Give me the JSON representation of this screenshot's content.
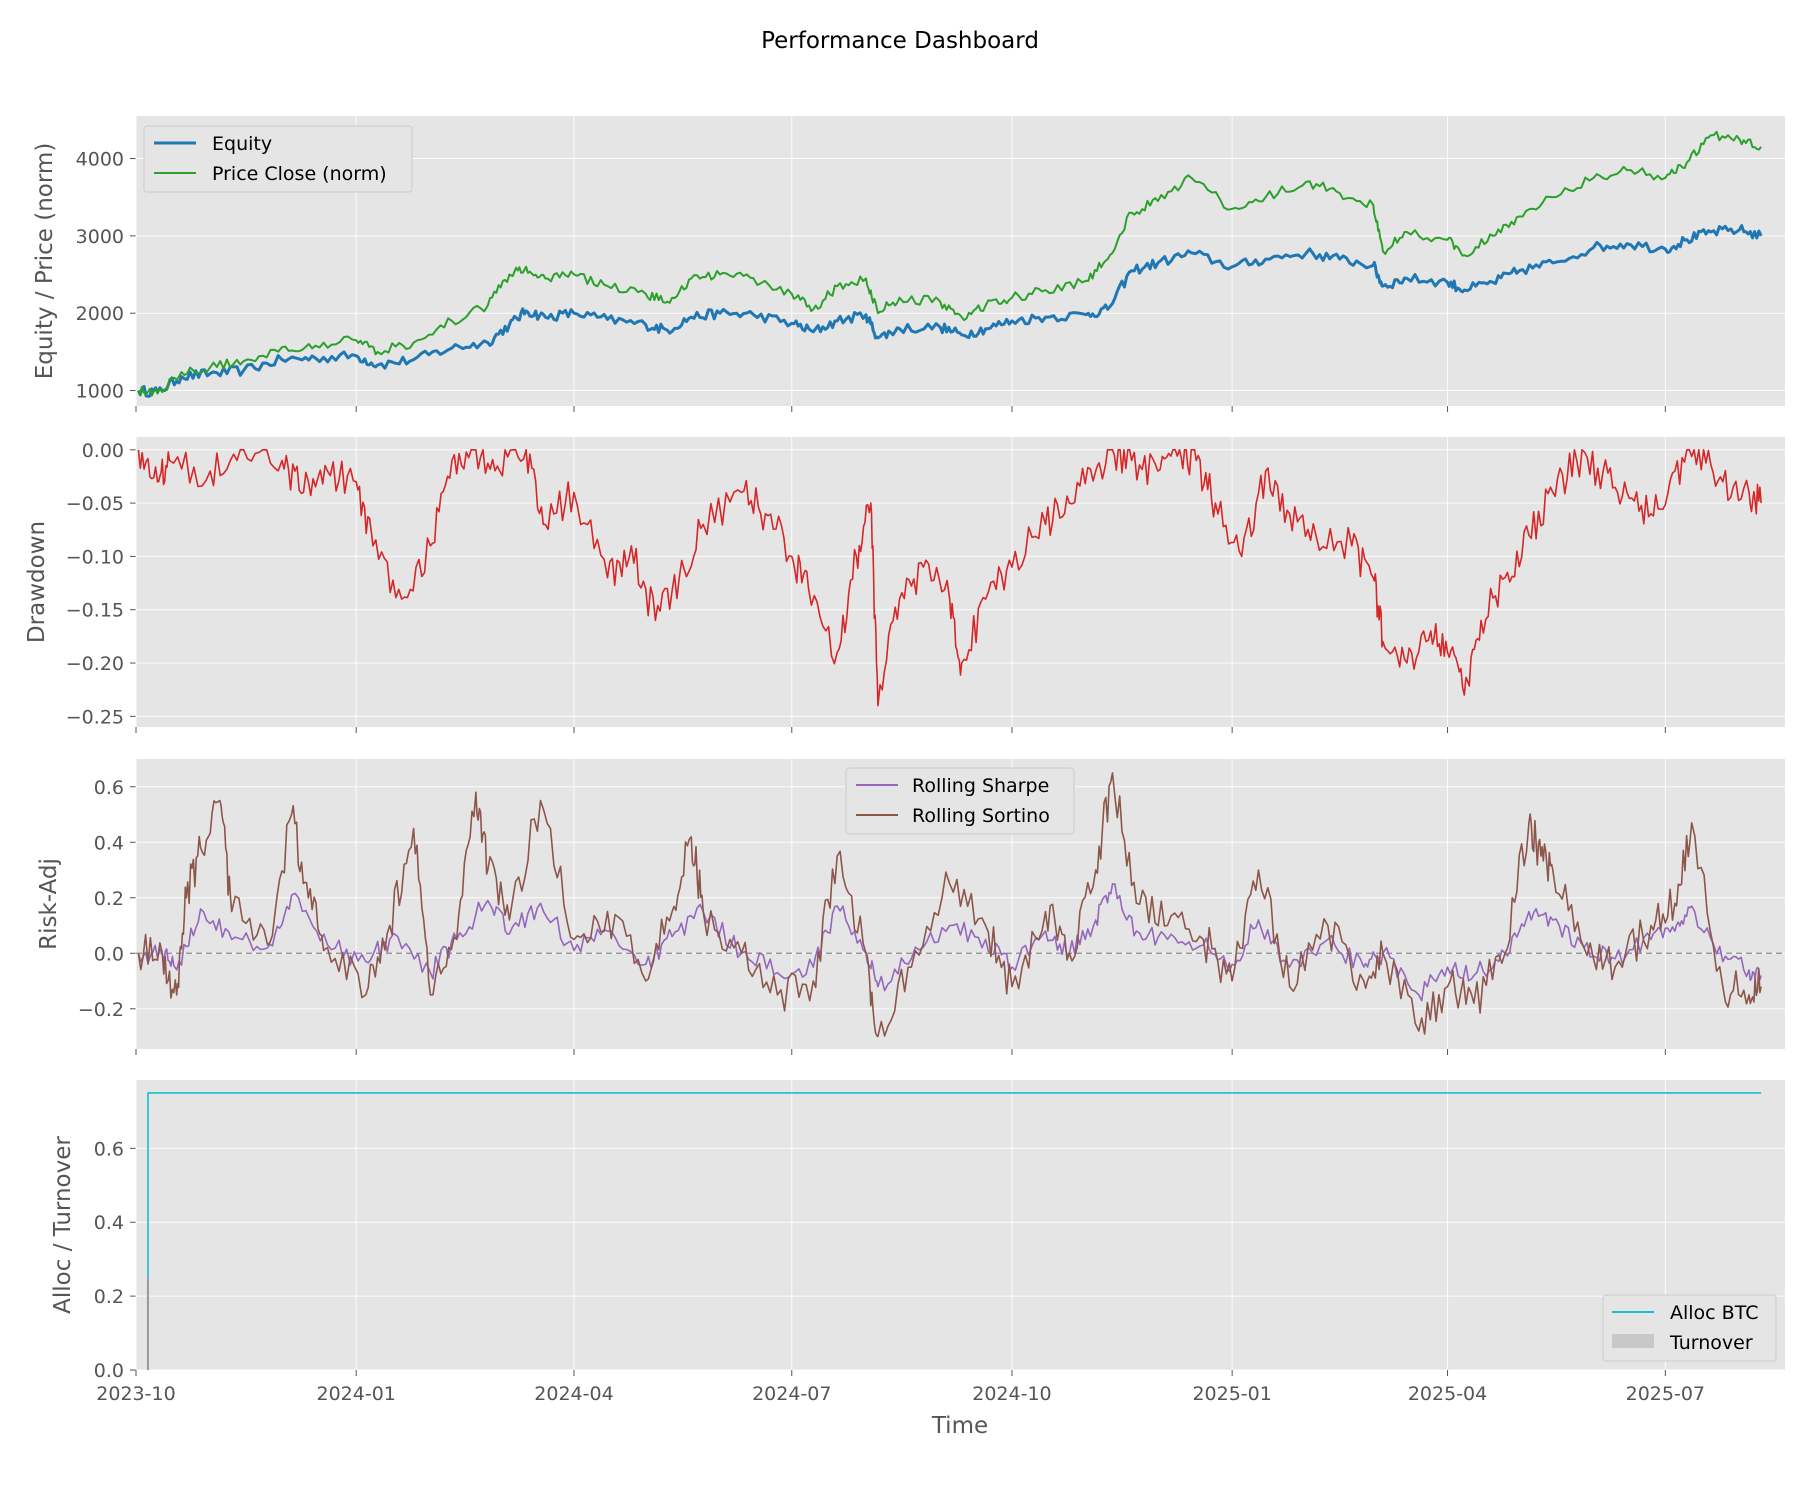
{
  "figure": {
    "title": "Performance Dashboard",
    "xlabel": "Time"
  },
  "colors": {
    "axes_bg": "#e5e5e5",
    "grid": "#ffffff",
    "equity": "#1f77b4",
    "price": "#2ca02c",
    "drawdown": "#d62728",
    "sharpe": "#9467bd",
    "sortino": "#8c564b",
    "alloc": "#17becf",
    "turnover": "#999999",
    "zero_line": "#8c8c8c"
  },
  "chart_data": [
    {
      "type": "line",
      "ylabel": "Equity / Price (norm)",
      "x_range": [
        "2023-10-01",
        "2025-08-20"
      ],
      "ylim": [
        800,
        4550
      ],
      "yticks": [
        1000,
        2000,
        3000,
        4000
      ],
      "xticks": [
        "2023-10",
        "2024-01",
        "2024-04",
        "2024-07",
        "2024-10",
        "2025-01",
        "2025-04",
        "2025-07"
      ],
      "grid": true,
      "legend": "upper-left",
      "series": [
        {
          "name": "Equity",
          "x": [
            "2023-10-02",
            "2023-10-10",
            "2023-10-20",
            "2023-11-01",
            "2023-11-15",
            "2023-12-01",
            "2023-12-15",
            "2024-01-01",
            "2024-01-10",
            "2024-01-25",
            "2024-02-10",
            "2024-02-25",
            "2024-03-05",
            "2024-03-12",
            "2024-03-20",
            "2024-04-01",
            "2024-04-15",
            "2024-05-01",
            "2024-05-10",
            "2024-05-20",
            "2024-06-01",
            "2024-06-15",
            "2024-07-01",
            "2024-07-10",
            "2024-07-20",
            "2024-08-01",
            "2024-08-06",
            "2024-08-15",
            "2024-09-01",
            "2024-09-10",
            "2024-09-20",
            "2024-10-01",
            "2024-10-15",
            "2024-11-01",
            "2024-11-10",
            "2024-11-20",
            "2024-12-01",
            "2024-12-15",
            "2025-01-01",
            "2025-01-15",
            "2025-02-01",
            "2025-02-15",
            "2025-03-01",
            "2025-03-05",
            "2025-03-15",
            "2025-04-01",
            "2025-04-08",
            "2025-04-20",
            "2025-05-01",
            "2025-05-15",
            "2025-06-01",
            "2025-06-15",
            "2025-07-01",
            "2025-07-10",
            "2025-07-20",
            "2025-08-01",
            "2025-08-10"
          ],
          "y": [
            1000,
            980,
            1180,
            1220,
            1260,
            1400,
            1420,
            1450,
            1330,
            1400,
            1550,
            1620,
            1850,
            2030,
            1950,
            2000,
            1920,
            1850,
            1780,
            1950,
            2000,
            1980,
            1870,
            1760,
            1900,
            1980,
            1680,
            1800,
            1820,
            1720,
            1800,
            1900,
            1950,
            1980,
            2050,
            2550,
            2650,
            2780,
            2600,
            2700,
            2780,
            2700,
            2620,
            2350,
            2450,
            2400,
            2300,
            2400,
            2550,
            2650,
            2850,
            2900,
            2830,
            2950,
            3050,
            3080,
            3000
          ]
        },
        {
          "name": "Price Close (norm)",
          "x": [
            "2023-10-02",
            "2023-10-10",
            "2023-10-20",
            "2023-11-01",
            "2023-11-15",
            "2023-12-01",
            "2023-12-15",
            "2024-01-01",
            "2024-01-10",
            "2024-01-25",
            "2024-02-10",
            "2024-02-25",
            "2024-03-05",
            "2024-03-12",
            "2024-03-20",
            "2024-04-01",
            "2024-04-15",
            "2024-05-01",
            "2024-05-10",
            "2024-05-20",
            "2024-06-01",
            "2024-06-15",
            "2024-07-01",
            "2024-07-10",
            "2024-07-20",
            "2024-08-01",
            "2024-08-06",
            "2024-08-15",
            "2024-09-01",
            "2024-09-10",
            "2024-09-20",
            "2024-10-01",
            "2024-10-15",
            "2024-11-01",
            "2024-11-10",
            "2024-11-20",
            "2024-12-01",
            "2024-12-15",
            "2025-01-01",
            "2025-01-15",
            "2025-02-01",
            "2025-02-15",
            "2025-03-01",
            "2025-03-05",
            "2025-03-15",
            "2025-04-01",
            "2025-04-08",
            "2025-04-20",
            "2025-05-01",
            "2025-05-15",
            "2025-06-01",
            "2025-06-15",
            "2025-07-01",
            "2025-07-10",
            "2025-07-20",
            "2025-08-01",
            "2025-08-10"
          ],
          "y": [
            1000,
            960,
            1240,
            1300,
            1380,
            1560,
            1580,
            1650,
            1500,
            1620,
            1900,
            2100,
            2500,
            2600,
            2450,
            2500,
            2350,
            2250,
            2150,
            2450,
            2500,
            2450,
            2250,
            2050,
            2350,
            2450,
            2000,
            2200,
            2150,
            1950,
            2100,
            2200,
            2300,
            2420,
            2700,
            3300,
            3450,
            3750,
            3350,
            3500,
            3700,
            3550,
            3400,
            2800,
            3050,
            2950,
            2750,
            3000,
            3250,
            3500,
            3750,
            3850,
            3750,
            3950,
            4300,
            4250,
            4150
          ]
        }
      ]
    },
    {
      "type": "line",
      "ylabel": "Drawdown",
      "x_range": [
        "2023-10-01",
        "2025-08-20"
      ],
      "ylim": [
        -0.26,
        0.012
      ],
      "yticks": [
        "0.00",
        "−0.05",
        "−0.10",
        "−0.15",
        "−0.20",
        "−0.25"
      ],
      "ytick_values": [
        0,
        -0.05,
        -0.1,
        -0.15,
        -0.2,
        -0.25
      ],
      "xticks": [
        "2023-10",
        "2024-01",
        "2024-04",
        "2024-07",
        "2024-10",
        "2025-01",
        "2025-04",
        "2025-07"
      ],
      "grid": true,
      "series": [
        {
          "name": "",
          "x": [
            "2023-10-02",
            "2023-10-10",
            "2023-10-15",
            "2023-11-01",
            "2023-11-15",
            "2023-12-01",
            "2023-12-10",
            "2023-12-20",
            "2024-01-01",
            "2024-01-08",
            "2024-01-20",
            "2024-02-01",
            "2024-02-10",
            "2024-02-20",
            "2024-03-01",
            "2024-03-12",
            "2024-03-20",
            "2024-04-01",
            "2024-04-15",
            "2024-04-25",
            "2024-05-05",
            "2024-05-15",
            "2024-05-25",
            "2024-06-10",
            "2024-06-20",
            "2024-07-01",
            "2024-07-08",
            "2024-07-20",
            "2024-07-28",
            "2024-08-03",
            "2024-08-06",
            "2024-08-15",
            "2024-08-25",
            "2024-09-05",
            "2024-09-10",
            "2024-09-20",
            "2024-10-01",
            "2024-10-15",
            "2024-10-25",
            "2024-11-05",
            "2024-11-12",
            "2024-11-20",
            "2024-12-01",
            "2024-12-10",
            "2024-12-17",
            "2024-12-25",
            "2025-01-05",
            "2025-01-15",
            "2025-01-25",
            "2025-02-05",
            "2025-02-20",
            "2025-03-01",
            "2025-03-05",
            "2025-03-15",
            "2025-03-25",
            "2025-04-01",
            "2025-04-08",
            "2025-04-15",
            "2025-04-25",
            "2025-05-05",
            "2025-05-15",
            "2025-05-25",
            "2025-06-05",
            "2025-06-15",
            "2025-06-25",
            "2025-07-05",
            "2025-07-15",
            "2025-07-25",
            "2025-08-05",
            "2025-08-10"
          ],
          "y": [
            0,
            -0.03,
            -0.01,
            -0.02,
            0,
            -0.01,
            -0.04,
            -0.02,
            -0.03,
            -0.09,
            -0.14,
            -0.09,
            -0.01,
            0,
            -0.02,
            0,
            -0.07,
            -0.04,
            -0.12,
            -0.09,
            -0.16,
            -0.12,
            -0.07,
            -0.04,
            -0.06,
            -0.1,
            -0.13,
            -0.19,
            -0.1,
            -0.05,
            -0.24,
            -0.14,
            -0.11,
            -0.14,
            -0.2,
            -0.14,
            -0.11,
            -0.07,
            -0.05,
            -0.02,
            0,
            -0.01,
            -0.02,
            0,
            -0.01,
            -0.05,
            -0.1,
            -0.02,
            -0.06,
            -0.08,
            -0.09,
            -0.12,
            -0.18,
            -0.2,
            -0.17,
            -0.19,
            -0.23,
            -0.16,
            -0.12,
            -0.08,
            -0.04,
            -0.01,
            -0.02,
            -0.04,
            -0.06,
            -0.02,
            0,
            -0.03,
            -0.04,
            -0.05
          ]
        }
      ]
    },
    {
      "type": "line",
      "ylabel": "Risk-Adj",
      "x_range": [
        "2023-10-01",
        "2025-08-20"
      ],
      "ylim": [
        -0.345,
        0.7
      ],
      "yticks": [
        "0.6",
        "0.4",
        "0.2",
        "0.0",
        "−0.2"
      ],
      "ytick_values": [
        0.6,
        0.4,
        0.2,
        0,
        -0.2
      ],
      "xticks": [
        "2023-10",
        "2024-01",
        "2024-04",
        "2024-07",
        "2024-10",
        "2025-01",
        "2025-04",
        "2025-07"
      ],
      "grid": true,
      "legend": "upper-center",
      "reference_line": 0,
      "series": [
        {
          "name": "Rolling Sharpe",
          "x": [
            "2023-10-02",
            "2023-10-12",
            "2023-10-18",
            "2023-10-28",
            "2023-11-10",
            "2023-11-25",
            "2023-12-05",
            "2023-12-20",
            "2024-01-05",
            "2024-01-15",
            "2024-02-01",
            "2024-02-12",
            "2024-02-25",
            "2024-03-05",
            "2024-03-18",
            "2024-04-01",
            "2024-04-15",
            "2024-05-01",
            "2024-05-12",
            "2024-05-25",
            "2024-06-10",
            "2024-06-25",
            "2024-07-10",
            "2024-07-20",
            "2024-08-01",
            "2024-08-06",
            "2024-08-20",
            "2024-09-05",
            "2024-09-20",
            "2024-10-01",
            "2024-10-15",
            "2024-10-25",
            "2024-11-05",
            "2024-11-12",
            "2024-11-22",
            "2024-12-05",
            "2024-12-20",
            "2025-01-01",
            "2025-01-12",
            "2025-01-25",
            "2025-02-10",
            "2025-02-25",
            "2025-03-05",
            "2025-03-20",
            "2025-04-01",
            "2025-04-12",
            "2025-04-25",
            "2025-05-05",
            "2025-05-15",
            "2025-05-28",
            "2025-06-10",
            "2025-06-25",
            "2025-07-05",
            "2025-07-12",
            "2025-07-25",
            "2025-08-05",
            "2025-08-10"
          ],
          "y": [
            0,
            0,
            -0.06,
            0.16,
            0.05,
            0.02,
            0.21,
            0.03,
            -0.03,
            0.05,
            -0.07,
            0.05,
            0.19,
            0.07,
            0.18,
            0.01,
            0.08,
            -0.04,
            0.06,
            0.15,
            0.0,
            -0.07,
            -0.05,
            0.17,
            0.0,
            -0.12,
            -0.02,
            0.1,
            0.05,
            -0.05,
            0.08,
            0.0,
            0.12,
            0.25,
            0.08,
            0.05,
            0.03,
            -0.04,
            0.12,
            -0.05,
            0.05,
            -0.05,
            0.0,
            -0.15,
            -0.05,
            -0.08,
            0.0,
            0.15,
            0.12,
            0.02,
            -0.02,
            0.05,
            0.08,
            0.17,
            -0.03,
            -0.06,
            -0.08
          ]
        },
        {
          "name": "Rolling Sortino",
          "x": [
            "2023-10-02",
            "2023-10-12",
            "2023-10-18",
            "2023-10-22",
            "2023-10-28",
            "2023-11-05",
            "2023-11-10",
            "2023-11-25",
            "2023-12-05",
            "2023-12-12",
            "2023-12-20",
            "2024-01-05",
            "2024-01-15",
            "2024-01-25",
            "2024-02-01",
            "2024-02-12",
            "2024-02-20",
            "2024-02-25",
            "2024-03-05",
            "2024-03-18",
            "2024-04-01",
            "2024-04-15",
            "2024-05-01",
            "2024-05-12",
            "2024-05-20",
            "2024-05-25",
            "2024-06-10",
            "2024-06-25",
            "2024-07-10",
            "2024-07-20",
            "2024-08-01",
            "2024-08-06",
            "2024-08-20",
            "2024-09-05",
            "2024-09-20",
            "2024-10-01",
            "2024-10-15",
            "2024-10-25",
            "2024-11-05",
            "2024-11-12",
            "2024-11-22",
            "2024-12-05",
            "2024-12-20",
            "2025-01-01",
            "2025-01-12",
            "2025-01-25",
            "2025-02-10",
            "2025-02-25",
            "2025-03-05",
            "2025-03-20",
            "2025-04-01",
            "2025-04-12",
            "2025-04-25",
            "2025-05-05",
            "2025-05-10",
            "2025-05-15",
            "2025-05-28",
            "2025-06-10",
            "2025-06-25",
            "2025-07-05",
            "2025-07-12",
            "2025-07-25",
            "2025-08-05",
            "2025-08-10"
          ],
          "y": [
            0,
            0,
            -0.15,
            0.2,
            0.38,
            0.55,
            0.15,
            0.03,
            0.5,
            0.2,
            0.02,
            -0.15,
            0.1,
            0.45,
            -0.15,
            0.05,
            0.58,
            0.3,
            0.12,
            0.55,
            0.05,
            0.15,
            -0.1,
            0.15,
            0.42,
            0.15,
            0.0,
            -0.15,
            -0.1,
            0.35,
            0.0,
            -0.3,
            -0.05,
            0.25,
            0.1,
            -0.12,
            0.15,
            0.0,
            0.3,
            0.65,
            0.18,
            0.1,
            0.05,
            -0.1,
            0.3,
            -0.12,
            0.1,
            -0.1,
            0.0,
            -0.28,
            -0.12,
            -0.18,
            0.0,
            0.47,
            0.35,
            0.3,
            0.02,
            -0.05,
            0.1,
            0.18,
            0.47,
            -0.12,
            -0.15,
            -0.12
          ]
        }
      ]
    },
    {
      "type": "line",
      "ylabel": "Alloc / Turnover",
      "xlabel": "Time",
      "x_range": [
        "2023-10-01",
        "2025-08-20"
      ],
      "ylim": [
        0,
        0.785
      ],
      "yticks": [
        "0.0",
        "0.2",
        "0.4",
        "0.6"
      ],
      "ytick_values": [
        0,
        0.2,
        0.4,
        0.6
      ],
      "xticks": [
        "2023-10",
        "2024-01",
        "2024-04",
        "2024-07",
        "2024-10",
        "2025-01",
        "2025-04",
        "2025-07"
      ],
      "grid": true,
      "legend": "lower-right",
      "series": [
        {
          "name": "Alloc BTC",
          "x": [
            "2023-10-06",
            "2023-10-06",
            "2025-08-10"
          ],
          "y": [
            0.25,
            0.75,
            0.75
          ]
        },
        {
          "name": "Turnover",
          "x": [
            "2023-10-06",
            "2023-10-06"
          ],
          "y": [
            0,
            0.25
          ]
        }
      ]
    }
  ]
}
